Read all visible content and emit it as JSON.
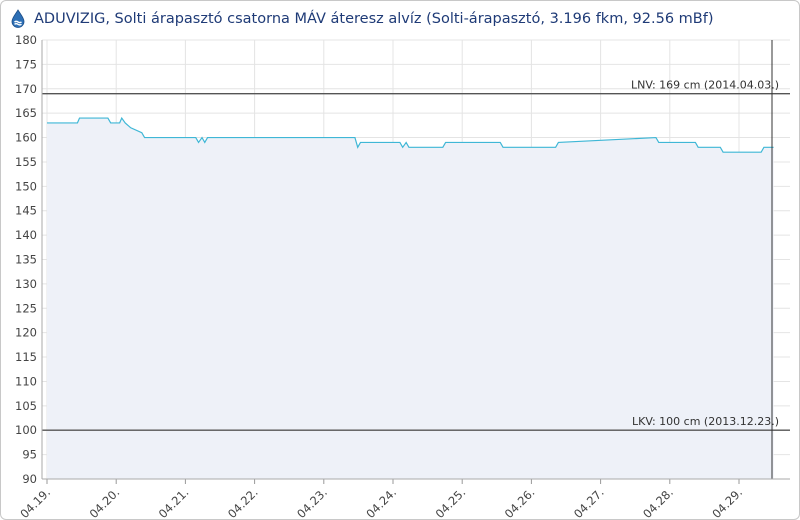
{
  "header": {
    "title": "ADUVIZIG, Solti árapasztó csatorna MÁV áteresz alvíz (Solti-árapasztó, 3.196 fkm, 92.56 mBf)",
    "icon": "water-gauge-icon"
  },
  "colors": {
    "line": "#3fb7d6",
    "area": "#eef1f8",
    "grid": "#e4e4e4",
    "reference": "#555555",
    "title": "#1f3b77"
  },
  "chart_data": {
    "type": "area",
    "title": "ADUVIZIG, Solti árapasztó csatorna MÁV áteresz alvíz (Solti-árapasztó, 3.196 fkm, 92.56 mBf)",
    "xlabel": "",
    "ylabel": "",
    "ylim": [
      90,
      180
    ],
    "yticks": [
      90,
      95,
      100,
      105,
      110,
      115,
      120,
      125,
      130,
      135,
      140,
      145,
      150,
      155,
      160,
      165,
      170,
      175,
      180
    ],
    "xticks": [
      "04.19.",
      "04.20.",
      "04.21.",
      "04.22.",
      "04.23.",
      "04.24.",
      "04.25.",
      "04.26.",
      "04.27.",
      "04.28.",
      "04.29."
    ],
    "xlim": [
      -0.05,
      10.6
    ],
    "grid": true,
    "reference_lines": [
      {
        "value": 169,
        "label": "LNV: 169 cm (2014.04.03.)"
      },
      {
        "value": 100,
        "label": "LKV: 100 cm (2013.12.23.)"
      }
    ],
    "x": [
      0.0,
      0.44,
      0.47,
      0.88,
      0.92,
      1.05,
      1.08,
      1.13,
      1.21,
      1.37,
      1.41,
      2.15,
      2.19,
      2.24,
      2.28,
      2.32,
      2.8,
      4.45,
      4.49,
      4.53,
      5.1,
      5.14,
      5.19,
      5.23,
      5.72,
      5.76,
      6.55,
      6.59,
      7.35,
      7.39,
      8.8,
      8.84,
      8.88,
      9.37,
      9.41,
      9.73,
      9.77,
      10.32,
      10.36,
      10.5
    ],
    "y": [
      163,
      163,
      164,
      164,
      163,
      163,
      164,
      163,
      162,
      161,
      160,
      160,
      159,
      160,
      159,
      160,
      160,
      160,
      158,
      159,
      159,
      158,
      159,
      158,
      158,
      159,
      159,
      158,
      158,
      159,
      160,
      159,
      159,
      159,
      158,
      158,
      157,
      157,
      158,
      158
    ]
  }
}
